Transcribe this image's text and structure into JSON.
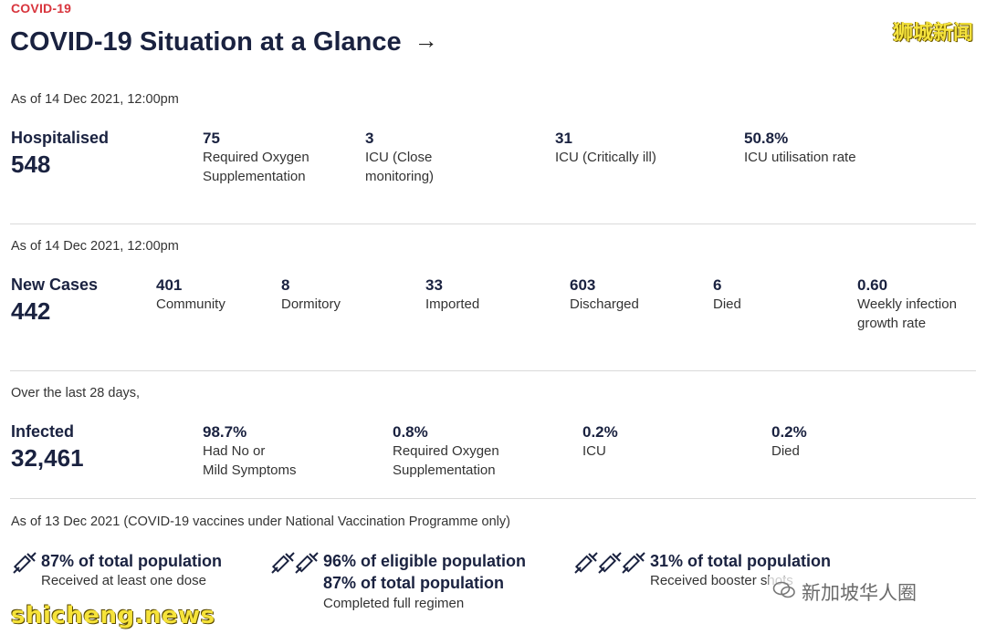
{
  "header": {
    "kicker": "COVID-19",
    "title": "COVID-19 Situation at a Glance",
    "arrow": "→",
    "watermark": "狮城新闻"
  },
  "hospitalised": {
    "as_of": "As of 14 Dec 2021, 12:00pm",
    "label": "Hospitalised",
    "total": "548",
    "stats": [
      {
        "value": "75",
        "label": "Required Oxygen\nSupplementation"
      },
      {
        "value": "3",
        "label": "ICU (Close\nmonitoring)"
      },
      {
        "value": "31",
        "label": "ICU (Critically ill)"
      },
      {
        "value": "50.8%",
        "label": "ICU utilisation rate"
      }
    ]
  },
  "new_cases": {
    "as_of": "As of 14 Dec 2021, 12:00pm",
    "label": "New Cases",
    "total": "442",
    "stats": [
      {
        "value": "401",
        "label": "Community"
      },
      {
        "value": "8",
        "label": "Dormitory"
      },
      {
        "value": "33",
        "label": "Imported"
      },
      {
        "value": "603",
        "label": "Discharged"
      },
      {
        "value": "6",
        "label": "Died"
      },
      {
        "value": "0.60",
        "label": "Weekly infection\ngrowth rate"
      }
    ]
  },
  "infected": {
    "as_of": "Over the last 28 days,",
    "label": "Infected",
    "total": "32,461",
    "stats": [
      {
        "value": "98.7%",
        "label": "Had No or\nMild Symptoms"
      },
      {
        "value": "0.8%",
        "label": "Required Oxygen\nSupplementation"
      },
      {
        "value": "0.2%",
        "label": "ICU"
      },
      {
        "value": "0.2%",
        "label": "Died"
      }
    ]
  },
  "vaccination": {
    "as_of": "As of 13 Dec 2021 (COVID-19 vaccines under National Vaccination Programme only)",
    "items": [
      {
        "icon": "syringe-icon",
        "line1": "87% of total population",
        "sub": "Received at least one dose"
      },
      {
        "icon": "syringe-icon",
        "line1": "96% of eligible population",
        "line2": "87% of total population",
        "sub": "Completed full regimen"
      },
      {
        "icon": "syringe-icon",
        "line1": "31% of total population",
        "sub": "Received booster shots"
      }
    ]
  },
  "watermarks": {
    "bottom_left": "shicheng.news",
    "bottom_right": "新加坡华人圈"
  }
}
